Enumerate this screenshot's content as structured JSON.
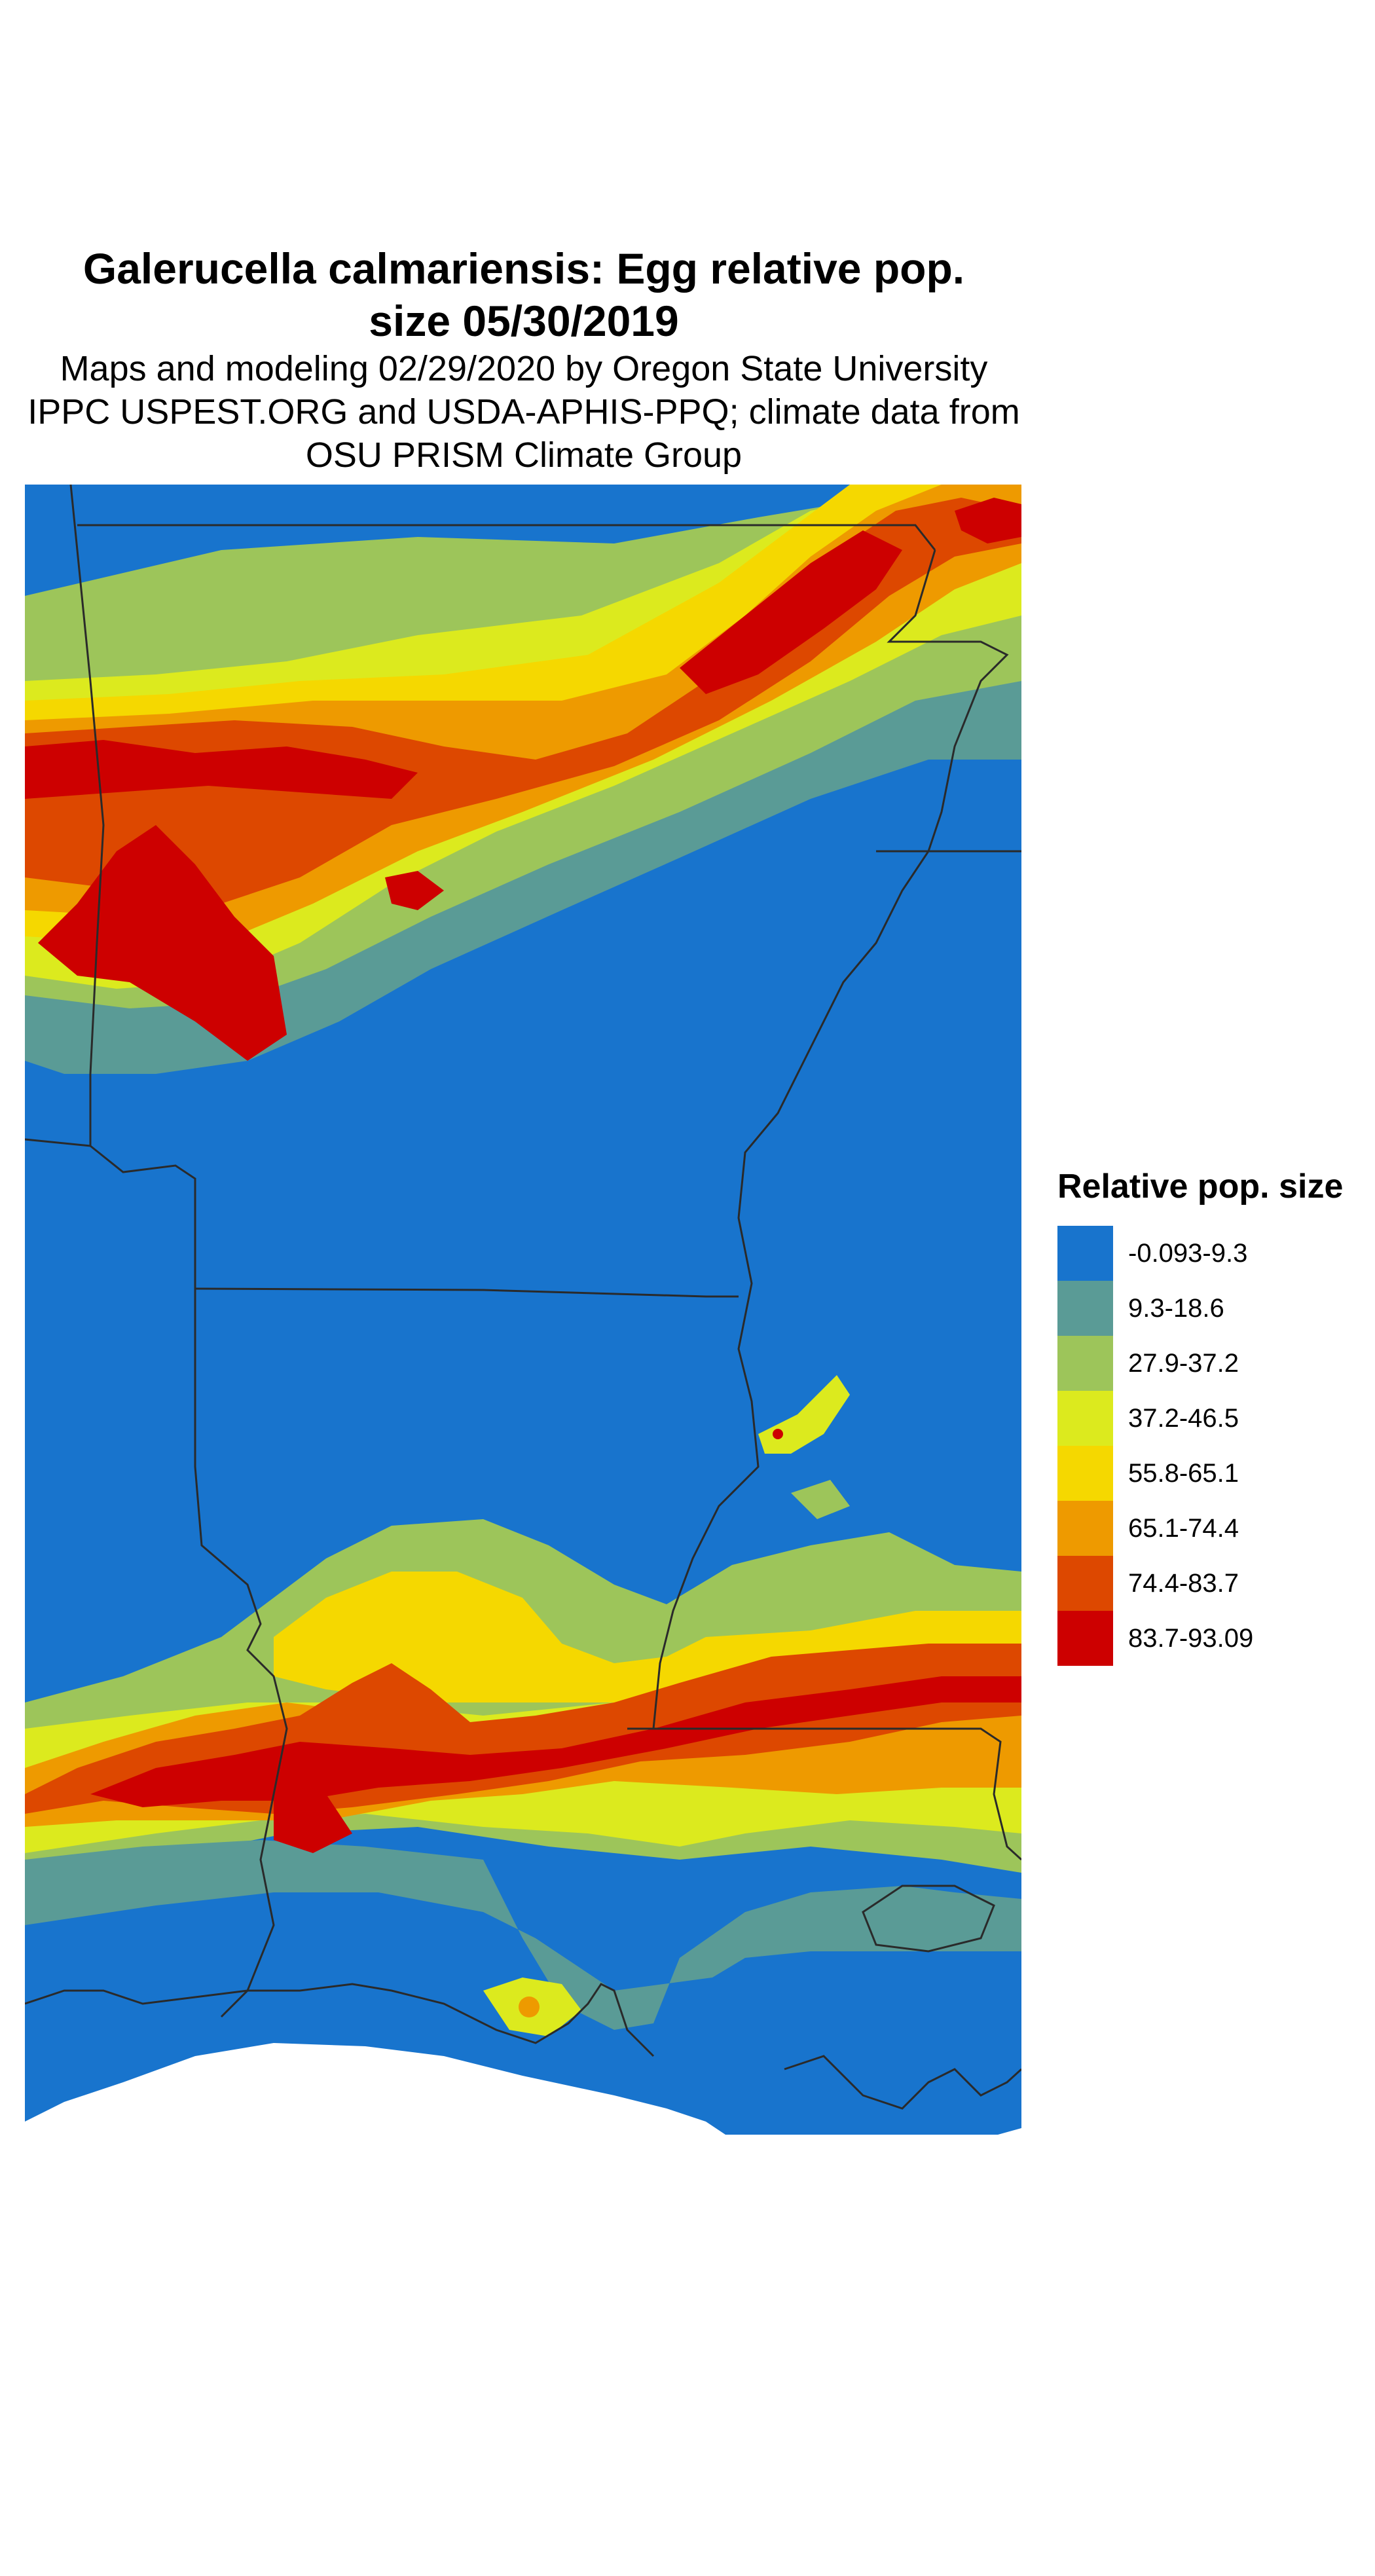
{
  "title": "Galerucella calmariensis: Egg relative pop. size 05/30/2019",
  "title_lines": [
    "Galerucella calmariensis: Egg relative pop.",
    "size 05/30/2019"
  ],
  "subtitle_lines": [
    "Maps and modeling 02/29/2020 by Oregon State University",
    "IPPC USPEST.ORG and USDA-APHIS-PPQ; climate data from",
    "OSU PRISM Climate Group"
  ],
  "legend": {
    "title": "Relative pop. size",
    "items": [
      {
        "label": "-0.093-9.3",
        "color": "#1874CD"
      },
      {
        "label": "9.3-18.6",
        "color": "#5A9B96"
      },
      {
        "label": "27.9-37.2",
        "color": "#9DC55A"
      },
      {
        "label": "37.2-46.5",
        "color": "#DCEA1E"
      },
      {
        "label": "55.8-65.1",
        "color": "#F5D800"
      },
      {
        "label": "65.1-74.4",
        "color": "#EE9A00"
      },
      {
        "label": "74.4-83.7",
        "color": "#DD4800"
      },
      {
        "label": "83.7-93.09",
        "color": "#CD0000"
      }
    ]
  }
}
